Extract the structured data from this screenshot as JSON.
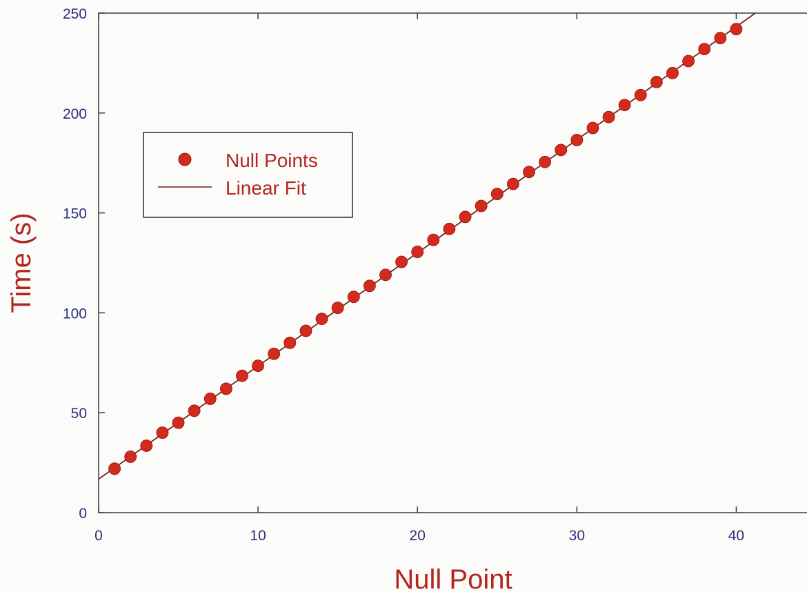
{
  "chart_data": {
    "type": "scatter",
    "title": "",
    "xlabel": "Null Point",
    "ylabel": "Time (s)",
    "xlim": [
      0,
      45
    ],
    "ylim": [
      0,
      250
    ],
    "x_ticks": [
      "0",
      "10",
      "20",
      "30",
      "40"
    ],
    "y_ticks": [
      "0",
      "50",
      "100",
      "150",
      "200",
      "250"
    ],
    "grid": false,
    "legend_position": "upper-left",
    "series": [
      {
        "name": "Null Points",
        "kind": "markers",
        "color": "#d42a1e",
        "x": [
          1,
          2,
          3,
          4,
          5,
          6,
          7,
          8,
          9,
          10,
          11,
          12,
          13,
          14,
          15,
          16,
          17,
          18,
          19,
          20,
          21,
          22,
          23,
          24,
          25,
          26,
          27,
          28,
          29,
          30,
          31,
          32,
          33,
          34,
          35,
          36,
          37,
          38,
          39,
          40
        ],
        "y": [
          22,
          28,
          33.5,
          40,
          45,
          51,
          57,
          62,
          68.5,
          73.5,
          79.5,
          85,
          91,
          97,
          102.5,
          108,
          113.5,
          119,
          125.5,
          130.5,
          136.5,
          142,
          148,
          153.5,
          159.5,
          164.5,
          170.5,
          175.5,
          181.5,
          186.5,
          192.5,
          198,
          204,
          209,
          215.5,
          220,
          226,
          232,
          237.5,
          242
        ]
      },
      {
        "name": "Linear Fit",
        "kind": "line",
        "color": "#7a1f1f",
        "x": [
          0,
          41.2
        ],
        "y": [
          16.8,
          250
        ]
      }
    ]
  }
}
